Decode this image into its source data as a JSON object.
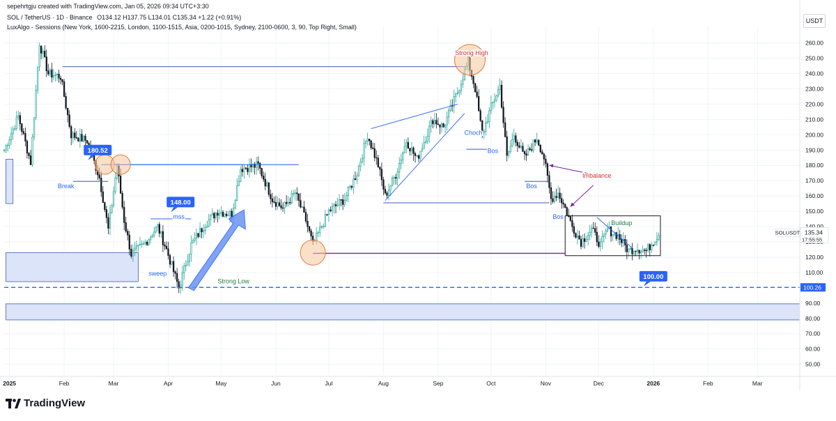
{
  "header": {
    "author_line": "sepehrtgju created with TradingView.com, Jan 05, 2026 09:34 UTC+3:30",
    "symbol_line": "SOL / TetherUS · 1D · Binance",
    "ohlc_line": "O134.12 H137.75 L134.01 C135.34 +1.22 (+0.91%)",
    "indicator_line": "LuxAlgo - Sessions (New York, 1600-2215, London, 1100-1515, Asia, 0200-1015, Sydney, 2100-0600, 3, 90, Top Right, Small)"
  },
  "currency_button": "USDT",
  "footer": {
    "brand": "TradingView",
    "logo_icon": "tradingview-logo-icon"
  },
  "colors": {
    "up": "#26a69a",
    "down": "#131722",
    "annotation_blue": "#2962ff",
    "zone_fill": "#dbe4f8",
    "zone_stroke": "#3d5fb8",
    "circle_fill": "#f7c79d",
    "circle_stroke": "#e07b39",
    "purple": "#7b1fa2",
    "label_red": "#d32f2f",
    "label_green": "#1b7a3e"
  },
  "chart_data": {
    "type": "candlestick",
    "symbol": "SOLUSDT",
    "interval": "1D",
    "y_axis": {
      "ticks": [
        50,
        60,
        70,
        80,
        90,
        100,
        110,
        120,
        130,
        140,
        150,
        160,
        170,
        180,
        190,
        200,
        210,
        220,
        230,
        240,
        250,
        260
      ],
      "tick_labels": [
        "50.00",
        "60.00",
        "70.00",
        "80.00",
        "90.00",
        "100.00",
        "110.00",
        "120.00",
        "130.00",
        "140.00",
        "150.00",
        "160.00",
        "170.00",
        "180.00",
        "190.00",
        "200.00",
        "210.00",
        "220.00",
        "230.00",
        "240.00",
        "250.00",
        "260.00"
      ],
      "ylim": [
        43,
        268
      ]
    },
    "x_axis": {
      "tick_labels": [
        "2025",
        "Feb",
        "Mar",
        "Apr",
        "May",
        "Jun",
        "Jul",
        "Aug",
        "Sep",
        "Oct",
        "Nov",
        "Dec",
        "2026",
        "Feb",
        "Mar"
      ],
      "tick_dates": [
        "2025-01-01",
        "2025-02-01",
        "2025-03-01",
        "2025-04-01",
        "2025-05-01",
        "2025-06-01",
        "2025-07-01",
        "2025-08-01",
        "2025-09-01",
        "2025-10-01",
        "2025-11-01",
        "2025-12-01",
        "2026-01-01",
        "2026-02-01",
        "2026-03-01"
      ],
      "bold_labels": [
        "2025",
        "2026"
      ],
      "xlim": [
        "2024-12-29",
        "2026-03-25"
      ]
    },
    "grid": true,
    "price_path": [
      [
        "2024-12-29",
        190
      ],
      [
        "2025-01-06",
        212
      ],
      [
        "2025-01-13",
        182
      ],
      [
        "2025-01-18",
        260
      ],
      [
        "2025-01-23",
        240
      ],
      [
        "2025-01-30",
        238
      ],
      [
        "2025-02-05",
        200
      ],
      [
        "2025-02-14",
        196
      ],
      [
        "2025-02-21",
        172
      ],
      [
        "2025-02-26",
        138
      ],
      [
        "2025-03-03",
        180
      ],
      [
        "2025-03-07",
        144
      ],
      [
        "2025-03-11",
        122
      ],
      [
        "2025-03-18",
        128
      ],
      [
        "2025-03-26",
        140
      ],
      [
        "2025-03-31",
        125
      ],
      [
        "2025-04-07",
        100
      ],
      [
        "2025-04-14",
        128
      ],
      [
        "2025-04-22",
        142
      ],
      [
        "2025-04-29",
        150
      ],
      [
        "2025-05-07",
        148
      ],
      [
        "2025-05-12",
        178
      ],
      [
        "2025-05-22",
        180
      ],
      [
        "2025-05-30",
        158
      ],
      [
        "2025-06-05",
        152
      ],
      [
        "2025-06-12",
        162
      ],
      [
        "2025-06-18",
        144
      ],
      [
        "2025-06-22",
        128
      ],
      [
        "2025-07-01",
        150
      ],
      [
        "2025-07-10",
        158
      ],
      [
        "2025-07-17",
        175
      ],
      [
        "2025-07-23",
        200
      ],
      [
        "2025-07-29",
        180
      ],
      [
        "2025-08-02",
        160
      ],
      [
        "2025-08-08",
        174
      ],
      [
        "2025-08-14",
        196
      ],
      [
        "2025-08-20",
        184
      ],
      [
        "2025-08-29",
        210
      ],
      [
        "2025-09-04",
        205
      ],
      [
        "2025-09-12",
        228
      ],
      [
        "2025-09-18",
        248
      ],
      [
        "2025-09-22",
        230
      ],
      [
        "2025-09-26",
        200
      ],
      [
        "2025-10-01",
        218
      ],
      [
        "2025-10-06",
        232
      ],
      [
        "2025-10-10",
        185
      ],
      [
        "2025-10-14",
        200
      ],
      [
        "2025-10-20",
        185
      ],
      [
        "2025-10-27",
        198
      ],
      [
        "2025-10-31",
        185
      ],
      [
        "2025-11-04",
        158
      ],
      [
        "2025-11-08",
        162
      ],
      [
        "2025-11-12",
        152
      ],
      [
        "2025-11-16",
        140
      ],
      [
        "2025-11-21",
        130
      ],
      [
        "2025-11-27",
        138
      ],
      [
        "2025-12-02",
        128
      ],
      [
        "2025-12-06",
        138
      ],
      [
        "2025-12-12",
        134
      ],
      [
        "2025-12-18",
        124
      ],
      [
        "2025-12-22",
        126
      ],
      [
        "2025-12-28",
        124
      ],
      [
        "2026-01-04",
        135.34
      ]
    ],
    "last_price": {
      "symbol": "SOLUSDT",
      "price": "135.34",
      "countdown": "17:55:55",
      "value": 135.34
    },
    "reference_price": {
      "label": "100.26",
      "value": 100.26
    },
    "labels": [
      {
        "text": "Strong High",
        "date": "2025-09-20",
        "price": 252,
        "color": "label_red"
      },
      {
        "text": "Break",
        "date": "2025-02-02",
        "price": 165,
        "color": "annotation_blue"
      },
      {
        "text": "mss",
        "date": "2025-04-07",
        "price": 145,
        "color": "annotation_blue"
      },
      {
        "text": "sweep",
        "date": "2025-03-26",
        "price": 108,
        "color": "annotation_blue"
      },
      {
        "text": "Strong Low",
        "date": "2025-05-08",
        "price": 103,
        "color": "label_green"
      },
      {
        "text": "Choch",
        "date": "2025-09-21",
        "price": 200,
        "color": "annotation_blue"
      },
      {
        "text": "Bos",
        "date": "2025-10-02",
        "price": 188,
        "color": "annotation_blue"
      },
      {
        "text": "Bos",
        "date": "2025-10-24",
        "price": 165,
        "color": "annotation_blue"
      },
      {
        "text": "Bos",
        "date": "2025-11-08",
        "price": 145,
        "color": "annotation_blue"
      },
      {
        "text": "Imbalance",
        "date": "2025-11-30",
        "price": 172,
        "color": "label_red"
      },
      {
        "text": "Buildup",
        "date": "2025-12-14",
        "price": 141,
        "color": "label_green"
      }
    ],
    "price_flags": [
      {
        "text": "180.52",
        "date": "2025-02-20",
        "price": 190
      },
      {
        "text": "148.00",
        "date": "2025-04-08",
        "price": 156
      },
      {
        "text": "100.00",
        "date": "2026-01-01",
        "price": 107.5
      }
    ],
    "horizontal_lines": [
      {
        "from": "2025-01-31",
        "to": "2025-09-17",
        "price": 244.5,
        "color": "zone_stroke"
      },
      {
        "from": "2025-03-01",
        "to": "2025-05-13",
        "price": 180.5,
        "color": "annotation_blue"
      },
      {
        "from": "2025-06-22",
        "to": "2025-11-12",
        "price": 122.5,
        "color": "purple"
      },
      {
        "from": "2025-08-01",
        "to": "2025-11-03",
        "price": 155.5,
        "color": "zone_stroke"
      },
      {
        "from": "2025-10-20",
        "to": "2025-11-03",
        "price": 169.5,
        "color": "zone_stroke"
      },
      {
        "from": "2025-02-06",
        "to": "2025-02-26",
        "price": 169.5,
        "color": "zone_stroke"
      },
      {
        "from": "2025-02-22",
        "to": "2025-06-14",
        "price": 180.5,
        "color": "annotation_blue"
      },
      {
        "from": "2025-03-22",
        "to": "2025-04-14",
        "price": 145,
        "color": "annotation_blue"
      },
      {
        "from": "2025-09-17",
        "to": "2025-10-01",
        "price": 190.5,
        "color": "zone_stroke"
      }
    ],
    "zones": [
      {
        "from": "2024-12-30",
        "to": "2025-01-03",
        "price_top": 184,
        "price_bottom": 155
      },
      {
        "from": "2024-12-30",
        "to": "2025-03-15",
        "price_top": 123,
        "price_bottom": 104
      },
      {
        "from": "2024-12-30",
        "to": "2026-03-25",
        "price_top": 89.5,
        "price_bottom": 79
      }
    ],
    "boxes": [
      {
        "from": "2025-11-12",
        "to": "2026-01-05",
        "price_top": 147,
        "price_bottom": 121
      }
    ],
    "circles": [
      {
        "date": "2025-02-24",
        "price": 180.5
      },
      {
        "date": "2025-03-05",
        "price": 180.5
      },
      {
        "date": "2025-09-19",
        "price": 249
      },
      {
        "date": "2025-06-22",
        "price": 123
      }
    ]
  }
}
